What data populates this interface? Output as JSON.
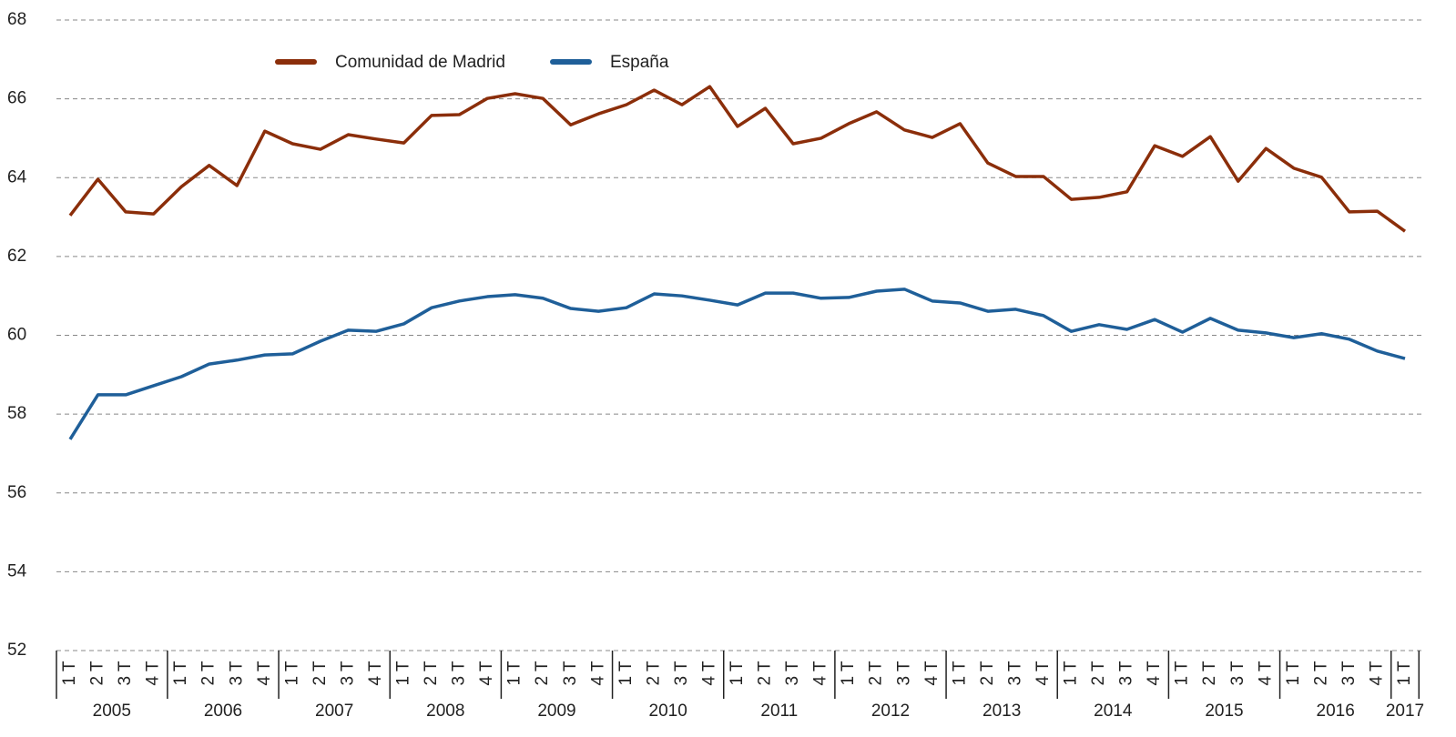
{
  "chart_data": {
    "type": "line",
    "categories": [
      "1 T",
      "2 T",
      "3 T",
      "4 T",
      "1 T",
      "2 T",
      "3 T",
      "4 T",
      "1 T",
      "2 T",
      "3 T",
      "4 T",
      "1 T",
      "2 T",
      "3 T",
      "4 T",
      "1 T",
      "2 T",
      "3 T",
      "4 T",
      "1 T",
      "2 T",
      "3 T",
      "4 T",
      "1 T",
      "2 T",
      "3 T",
      "4 T",
      "1 T",
      "2 T",
      "3 T",
      "4 T",
      "1 T",
      "2 T",
      "3 T",
      "4 T",
      "1 T",
      "2 T",
      "3 T",
      "4 T",
      "1 T",
      "2 T",
      "3 T",
      "4 T",
      "1 T",
      "2 T",
      "3 T",
      "4 T",
      "1 T"
    ],
    "years": [
      "2005",
      "2006",
      "2007",
      "2008",
      "2009",
      "2010",
      "2011",
      "2012",
      "2013",
      "2014",
      "2015",
      "2016",
      "2017"
    ],
    "series": [
      {
        "name": "Comunidad de Madrid",
        "color": "#8b2e0a",
        "values": [
          63.04,
          63.96,
          63.13,
          63.08,
          63.77,
          64.31,
          63.8,
          65.18,
          64.86,
          64.72,
          65.09,
          64.98,
          64.88,
          65.58,
          65.6,
          66.01,
          66.13,
          66.01,
          65.34,
          65.62,
          65.85,
          66.22,
          65.85,
          66.31,
          65.3,
          65.76,
          64.86,
          65.0,
          65.37,
          65.67,
          65.21,
          65.02,
          65.37,
          64.37,
          64.03,
          64.03,
          63.45,
          63.5,
          63.64,
          64.81,
          64.54,
          65.04,
          63.91,
          64.74,
          64.24,
          64.01,
          63.13,
          63.15,
          62.64
        ]
      },
      {
        "name": "España",
        "color": "#1f5f99",
        "values": [
          57.36,
          58.49,
          58.49,
          58.72,
          58.95,
          59.27,
          59.37,
          59.5,
          59.53,
          59.85,
          60.13,
          60.1,
          60.29,
          60.7,
          60.87,
          60.98,
          61.03,
          60.94,
          60.68,
          60.61,
          60.7,
          61.05,
          61.0,
          60.89,
          60.77,
          61.07,
          61.07,
          60.94,
          60.96,
          61.12,
          61.17,
          60.87,
          60.82,
          60.61,
          60.66,
          60.5,
          60.1,
          60.27,
          60.15,
          60.4,
          60.08,
          60.43,
          60.13,
          60.06,
          59.94,
          60.04,
          59.9,
          59.6,
          59.41
        ]
      }
    ],
    "ylim": [
      52,
      68
    ],
    "yticks": [
      52,
      54,
      56,
      58,
      60,
      62,
      64,
      66,
      68
    ],
    "grid": true
  }
}
